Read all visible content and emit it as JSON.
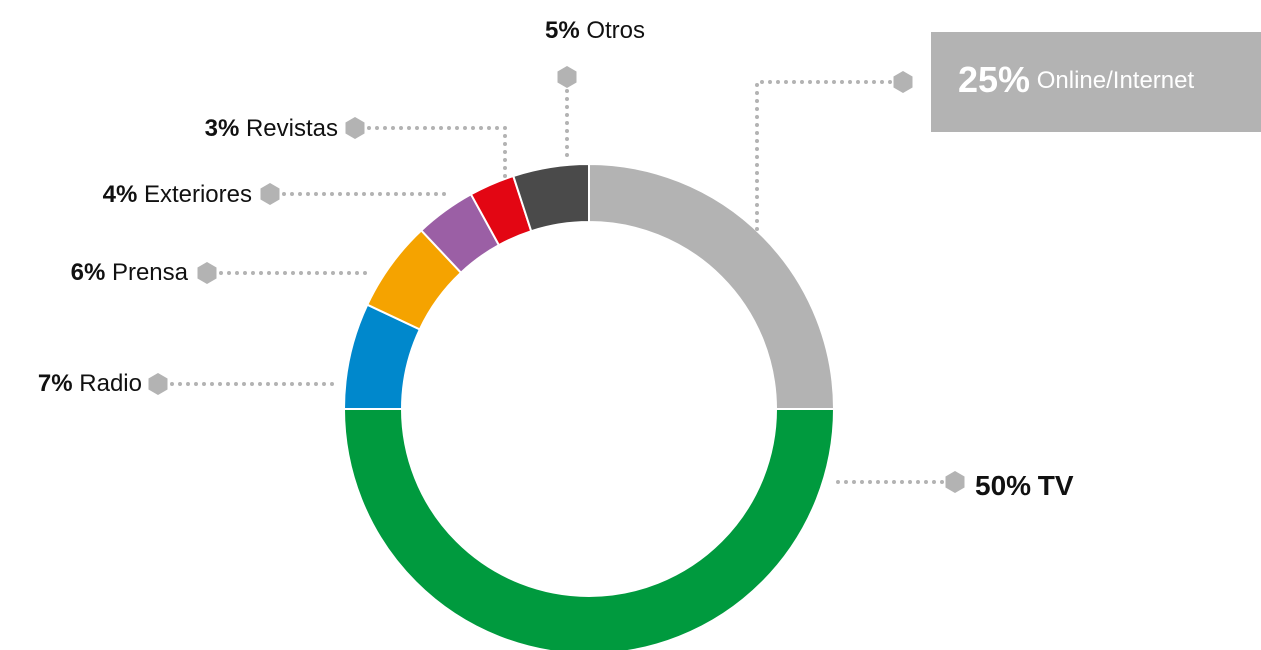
{
  "chart_data": {
    "type": "donut",
    "categories": [
      "Online/Internet",
      "TV",
      "Radio",
      "Prensa",
      "Exteriores",
      "Revistas",
      "Otros"
    ],
    "values": [
      25,
      50,
      7,
      6,
      4,
      3,
      5
    ],
    "value_labels": [
      "25%",
      "50%",
      "7%",
      "6%",
      "4%",
      "3%",
      "5%"
    ],
    "colors": [
      "#b3b3b3",
      "#009a3e",
      "#0088cc",
      "#f5a300",
      "#9b5fa5",
      "#e30613",
      "#4a4a4a"
    ]
  }
}
